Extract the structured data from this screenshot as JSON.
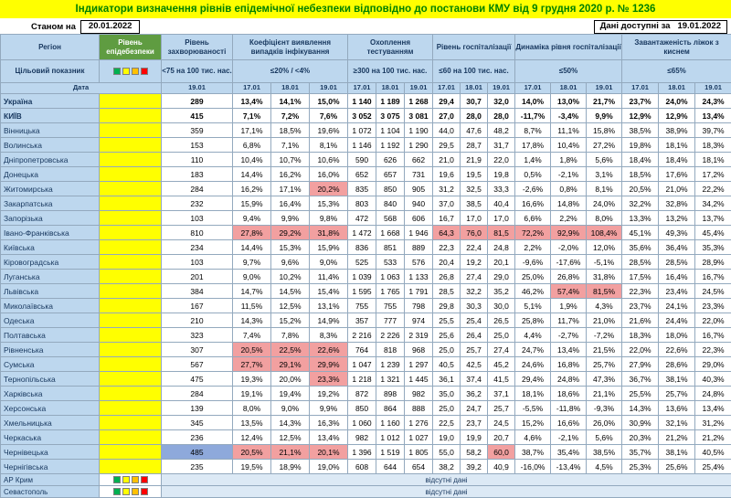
{
  "title": "Індикатори визначення рівнів епідемічної небезпеки відповідно до постанови КМУ від 9 грудня 2020 р. № 1236",
  "status": {
    "label": "Станом на",
    "date": "20.01.2022",
    "available_label": "Дані доступні за",
    "available_date": "19.01.2022"
  },
  "header": {
    "region": "Регіон",
    "epidemic_level": "Рівень епідебезпеки",
    "morbidity": "Рівень захворюваності",
    "detection": "Коефіцієнт виявлення випадків інфікування",
    "testing": "Охоплення тестуванням",
    "hospitalization": "Рівень госпіталізації",
    "dynamics": "Динаміка рівня госпіталізації",
    "beds": "Завантаженість ліжок з киснем"
  },
  "targets": {
    "label": "Цільовий показник",
    "morbidity": "<75 на 100 тис. нас.",
    "detection": "≤20% / <4%",
    "testing": "≥300 на 100 тис. нас.",
    "hospitalization": "≤60 на 100 тис. нас.",
    "dynamics": "≤50%",
    "beds": "≤65%"
  },
  "dates": {
    "label": "Дата",
    "morbidity": "19.01",
    "cols": [
      "17.01",
      "18.01",
      "19.01"
    ]
  },
  "legend_colors": [
    "#00B050",
    "#FFFF00",
    "#FFC000",
    "#FF0000"
  ],
  "no_data_text": "відсутні дані",
  "rows": [
    {
      "name": "Україна",
      "b": true,
      "v": [
        "289",
        "13,4%",
        "14,1%",
        "15,0%",
        "1 140",
        "1 189",
        "1 268",
        "29,4",
        "30,7",
        "32,0",
        "14,0%",
        "13,0%",
        "21,7%",
        "23,7%",
        "24,0%",
        "24,3%"
      ]
    },
    {
      "name": "КИЇВ",
      "b": true,
      "v": [
        "415",
        "7,1%",
        "7,2%",
        "7,6%",
        "3 052",
        "3 075",
        "3 081",
        "27,0",
        "28,0",
        "28,0",
        "-11,7%",
        "-3,4%",
        "9,9%",
        "12,9%",
        "12,9%",
        "13,4%"
      ]
    },
    {
      "name": "Вінницька",
      "v": [
        "359",
        "17,1%",
        "18,5%",
        "19,6%",
        "1 072",
        "1 104",
        "1 190",
        "44,0",
        "47,6",
        "48,2",
        "8,7%",
        "11,1%",
        "15,8%",
        "38,5%",
        "38,9%",
        "39,7%"
      ]
    },
    {
      "name": "Волинська",
      "v": [
        "153",
        "6,8%",
        "7,1%",
        "8,1%",
        "1 146",
        "1 192",
        "1 290",
        "29,5",
        "28,7",
        "31,7",
        "17,8%",
        "10,4%",
        "27,2%",
        "19,8%",
        "18,1%",
        "18,3%"
      ]
    },
    {
      "name": "Дніпропетровська",
      "v": [
        "110",
        "10,4%",
        "10,7%",
        "10,6%",
        "590",
        "626",
        "662",
        "21,0",
        "21,9",
        "22,0",
        "1,4%",
        "1,8%",
        "5,6%",
        "18,4%",
        "18,4%",
        "18,1%"
      ]
    },
    {
      "name": "Донецька",
      "v": [
        "183",
        "14,4%",
        "16,2%",
        "16,0%",
        "652",
        "657",
        "731",
        "19,6",
        "19,5",
        "19,8",
        "0,5%",
        "-2,1%",
        "3,1%",
        "18,5%",
        "17,6%",
        "17,2%"
      ]
    },
    {
      "name": "Житомирська",
      "v": [
        "284",
        "16,2%",
        "17,1%",
        "20,2%",
        "835",
        "850",
        "905",
        "31,2",
        "32,5",
        "33,3",
        "-2,6%",
        "0,8%",
        "8,1%",
        "20,5%",
        "21,0%",
        "22,2%"
      ],
      "hl": [
        3
      ]
    },
    {
      "name": "Закарпатська",
      "v": [
        "232",
        "15,9%",
        "16,4%",
        "15,3%",
        "803",
        "840",
        "940",
        "37,0",
        "38,5",
        "40,4",
        "16,6%",
        "14,8%",
        "24,0%",
        "32,2%",
        "32,8%",
        "34,2%"
      ]
    },
    {
      "name": "Запорізька",
      "v": [
        "103",
        "9,4%",
        "9,9%",
        "9,8%",
        "472",
        "568",
        "606",
        "16,7",
        "17,0",
        "17,0",
        "6,6%",
        "2,2%",
        "8,0%",
        "13,3%",
        "13,2%",
        "13,7%"
      ]
    },
    {
      "name": "Івано-Франківська",
      "v": [
        "810",
        "27,8%",
        "29,2%",
        "31,8%",
        "1 472",
        "1 668",
        "1 946",
        "64,3",
        "76,0",
        "81,5",
        "72,2%",
        "92,9%",
        "108,4%",
        "45,1%",
        "49,3%",
        "45,4%"
      ],
      "hl": [
        1,
        2,
        3,
        7,
        8,
        9,
        10,
        11,
        12
      ]
    },
    {
      "name": "Київська",
      "v": [
        "234",
        "14,4%",
        "15,3%",
        "15,9%",
        "836",
        "851",
        "889",
        "22,3",
        "22,4",
        "24,8",
        "2,2%",
        "-2,0%",
        "12,0%",
        "35,6%",
        "36,4%",
        "35,3%"
      ]
    },
    {
      "name": "Кіровоградська",
      "v": [
        "103",
        "9,7%",
        "9,6%",
        "9,0%",
        "525",
        "533",
        "576",
        "20,4",
        "19,2",
        "20,1",
        "-9,6%",
        "-17,6%",
        "-5,1%",
        "28,5%",
        "28,5%",
        "28,9%"
      ]
    },
    {
      "name": "Луганська",
      "v": [
        "201",
        "9,0%",
        "10,2%",
        "11,4%",
        "1 039",
        "1 063",
        "1 133",
        "26,8",
        "27,4",
        "29,0",
        "25,0%",
        "26,8%",
        "31,8%",
        "17,5%",
        "16,4%",
        "16,7%"
      ]
    },
    {
      "name": "Львівська",
      "v": [
        "384",
        "14,7%",
        "14,5%",
        "15,4%",
        "1 595",
        "1 765",
        "1 791",
        "28,5",
        "32,2",
        "35,2",
        "46,2%",
        "57,4%",
        "81,5%",
        "22,3%",
        "23,4%",
        "24,5%"
      ],
      "hl": [
        11,
        12
      ]
    },
    {
      "name": "Миколаївська",
      "v": [
        "167",
        "11,5%",
        "12,5%",
        "13,1%",
        "755",
        "755",
        "798",
        "29,8",
        "30,3",
        "30,0",
        "5,1%",
        "1,9%",
        "4,3%",
        "23,7%",
        "24,1%",
        "23,3%"
      ]
    },
    {
      "name": "Одеська",
      "v": [
        "210",
        "14,3%",
        "15,2%",
        "14,9%",
        "357",
        "777",
        "974",
        "25,5",
        "25,4",
        "26,5",
        "25,8%",
        "11,7%",
        "21,0%",
        "21,6%",
        "24,4%",
        "22,0%"
      ]
    },
    {
      "name": "Полтавська",
      "v": [
        "323",
        "7,4%",
        "7,8%",
        "8,3%",
        "2 216",
        "2 226",
        "2 319",
        "25,6",
        "26,4",
        "25,0",
        "4,4%",
        "-2,7%",
        "-7,2%",
        "18,3%",
        "18,0%",
        "16,7%"
      ]
    },
    {
      "name": "Рівненська",
      "v": [
        "307",
        "20,5%",
        "22,5%",
        "22,6%",
        "764",
        "818",
        "968",
        "25,0",
        "25,7",
        "27,4",
        "24,7%",
        "13,4%",
        "21,5%",
        "22,0%",
        "22,6%",
        "22,3%"
      ],
      "hl": [
        1,
        2,
        3
      ]
    },
    {
      "name": "Сумська",
      "v": [
        "567",
        "27,7%",
        "29,1%",
        "29,9%",
        "1 047",
        "1 239",
        "1 297",
        "40,5",
        "42,5",
        "45,2",
        "24,6%",
        "16,8%",
        "25,7%",
        "27,9%",
        "28,6%",
        "29,0%"
      ],
      "hl": [
        1,
        2,
        3
      ]
    },
    {
      "name": "Тернопільська",
      "v": [
        "475",
        "19,3%",
        "20,0%",
        "23,3%",
        "1 218",
        "1 321",
        "1 445",
        "36,1",
        "37,4",
        "41,5",
        "29,4%",
        "24,8%",
        "47,3%",
        "36,7%",
        "38,1%",
        "40,3%"
      ],
      "hl": [
        3
      ]
    },
    {
      "name": "Харківська",
      "v": [
        "284",
        "19,1%",
        "19,4%",
        "19,2%",
        "872",
        "898",
        "982",
        "35,0",
        "36,2",
        "37,1",
        "18,1%",
        "18,6%",
        "21,1%",
        "25,5%",
        "25,7%",
        "24,8%"
      ]
    },
    {
      "name": "Херсонська",
      "v": [
        "139",
        "8,0%",
        "9,0%",
        "9,9%",
        "850",
        "864",
        "888",
        "25,0",
        "24,7",
        "25,7",
        "-5,5%",
        "-11,8%",
        "-9,3%",
        "14,3%",
        "13,6%",
        "13,4%"
      ]
    },
    {
      "name": "Хмельницька",
      "v": [
        "345",
        "13,5%",
        "14,3%",
        "16,3%",
        "1 060",
        "1 160",
        "1 276",
        "22,5",
        "23,7",
        "24,5",
        "15,2%",
        "16,6%",
        "26,0%",
        "30,9%",
        "32,1%",
        "31,2%"
      ]
    },
    {
      "name": "Черкаська",
      "v": [
        "236",
        "12,4%",
        "12,5%",
        "13,4%",
        "982",
        "1 012",
        "1 027",
        "19,0",
        "19,9",
        "20,7",
        "4,6%",
        "-2,1%",
        "5,6%",
        "20,3%",
        "21,2%",
        "21,2%"
      ]
    },
    {
      "name": "Чернівецька",
      "v": [
        "485",
        "20,5%",
        "21,1%",
        "20,1%",
        "1 396",
        "1 519",
        "1 805",
        "55,0",
        "58,2",
        "60,0",
        "38,7%",
        "35,4%",
        "38,5%",
        "35,7%",
        "38,1%",
        "40,5%"
      ],
      "hl": [
        1,
        2,
        3,
        9
      ],
      "hlb": [
        0
      ]
    },
    {
      "name": "Чернігівська",
      "v": [
        "235",
        "19,5%",
        "18,9%",
        "19,0%",
        "608",
        "644",
        "654",
        "38,2",
        "39,2",
        "40,9",
        "-16,0%",
        "-13,4%",
        "4,5%",
        "25,3%",
        "25,6%",
        "25,4%"
      ]
    },
    {
      "name": "АР Крим",
      "nodata": true
    },
    {
      "name": "Севастополь",
      "nodata": true
    }
  ]
}
